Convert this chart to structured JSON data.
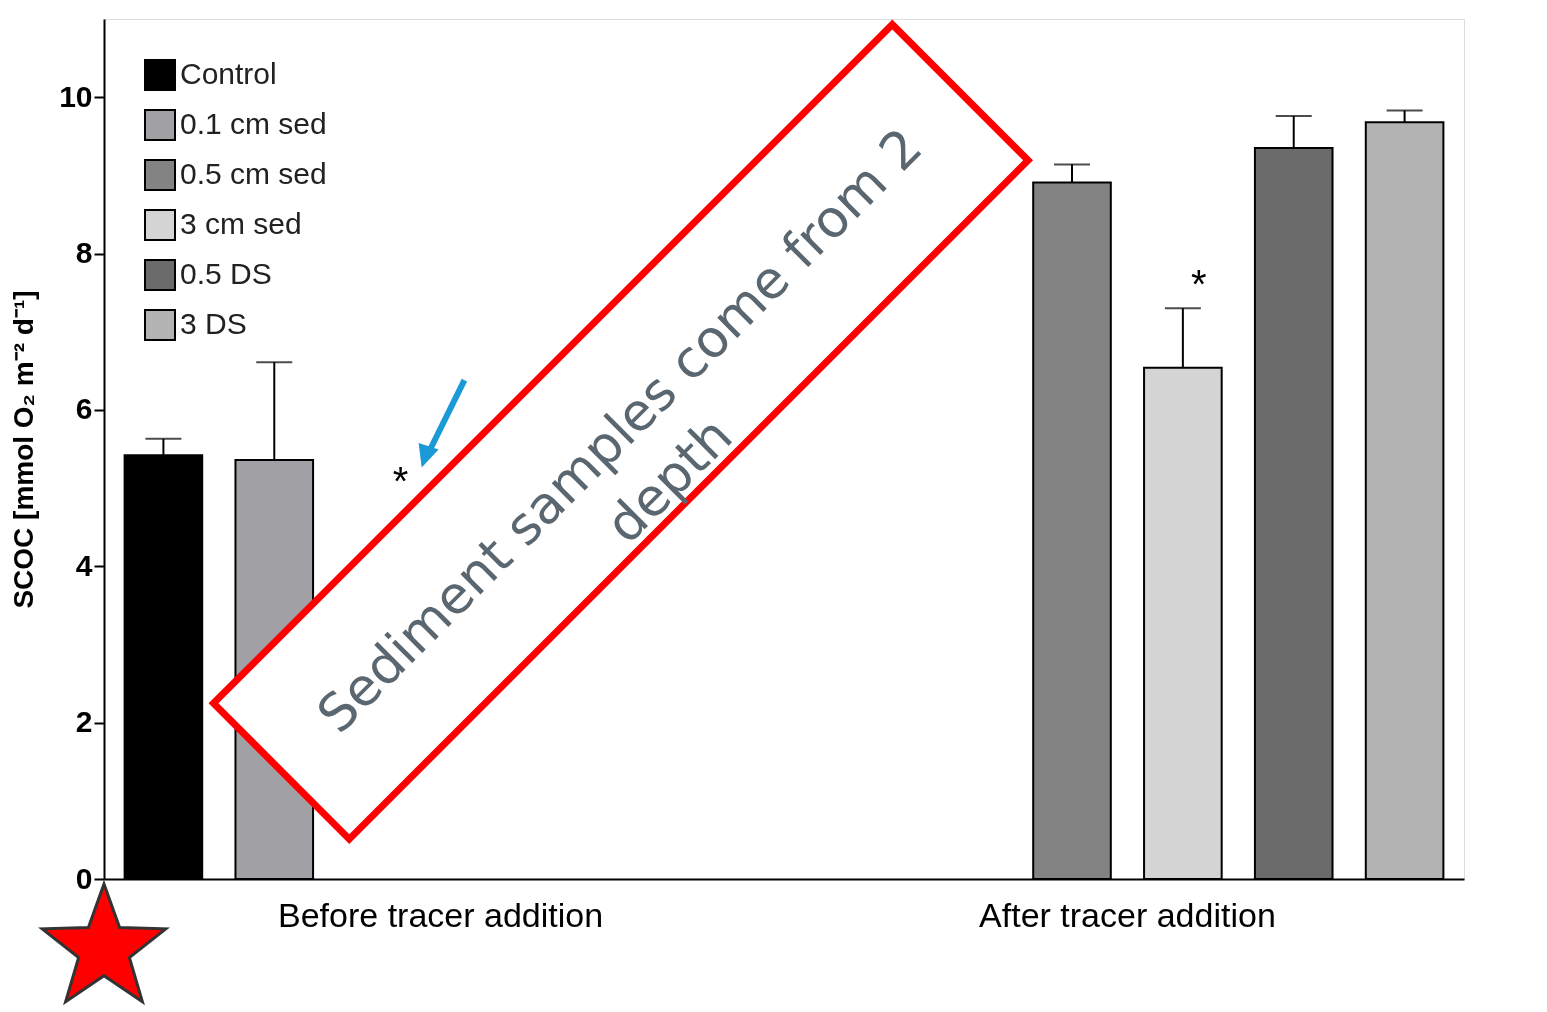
{
  "chart_data": {
    "type": "bar",
    "ylabel": "SCOC [mmol O₂ m⁻² d⁻¹]",
    "categories": [
      "Before tracer addition",
      "After tracer addition"
    ],
    "series": [
      {
        "name": "Control",
        "color": "#000000",
        "values": [
          5.42,
          null
        ],
        "errors": [
          [
            5.42,
            5.63
          ],
          null
        ]
      },
      {
        "name": "0.1 cm sed",
        "color": "#a1a1a5",
        "values": [
          5.36,
          null
        ],
        "errors": [
          [
            5.36,
            6.61
          ],
          null
        ]
      },
      {
        "name": "0.5 cm sed",
        "color": "#838383",
        "values": [
          null,
          8.91
        ],
        "errors": [
          null,
          [
            8.91,
            9.14
          ]
        ]
      },
      {
        "name": "3 cm sed",
        "color": "#d4d4d4",
        "values": [
          null,
          6.54
        ],
        "errors": [
          null,
          [
            6.54,
            7.3
          ]
        ]
      },
      {
        "name": "0.5 DS",
        "color": "#6b6b6b",
        "values": [
          null,
          9.35
        ],
        "errors": [
          null,
          [
            9.35,
            9.76
          ]
        ]
      },
      {
        "name": "3 DS",
        "color": "#b3b3b3",
        "values": [
          null,
          9.68
        ],
        "errors": [
          null,
          [
            9.68,
            9.83
          ]
        ]
      }
    ],
    "ylim": [
      0,
      11
    ],
    "yticks": [
      {
        "value": 0,
        "label": "0"
      },
      {
        "value": 2,
        "label": "2"
      },
      {
        "value": 4,
        "label": "4"
      },
      {
        "value": 6,
        "label": "6"
      },
      {
        "value": 8,
        "label": "8"
      },
      {
        "value": 10,
        "label": "10"
      }
    ],
    "grid": false,
    "legend": "top left",
    "annotations": [
      "*",
      "*",
      "Sediment samples come from 2\ndepth"
    ]
  }
}
